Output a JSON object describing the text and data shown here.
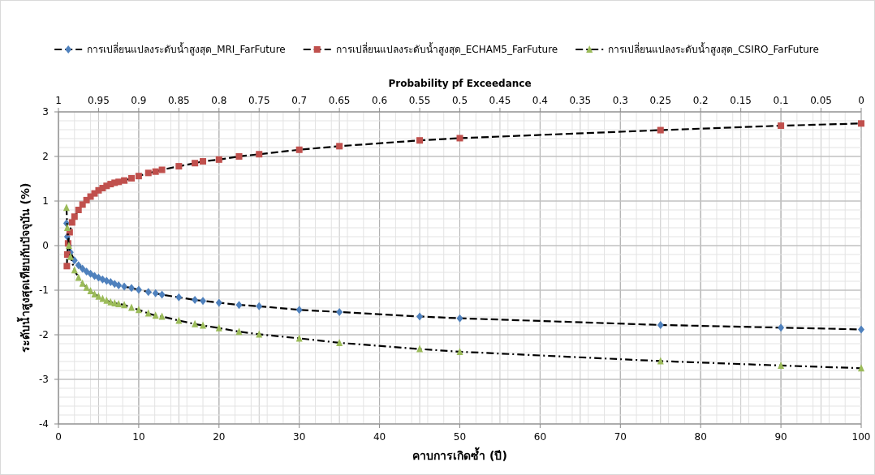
{
  "chart_data": {
    "type": "line",
    "xlabel": "คาบการเกิดซ้ำ (ปี)",
    "ylabel": "ระดับน้ำสูงสุดเทียบกับปัจจุบัน (%)",
    "x2label": "Probability pf Exceedance",
    "xlim": [
      0,
      100
    ],
    "xticks": [
      0,
      10,
      20,
      30,
      40,
      50,
      60,
      70,
      80,
      90,
      100
    ],
    "x2lim": [
      1,
      0
    ],
    "x2ticks": [
      1,
      0.95,
      0.9,
      0.85,
      0.8,
      0.75,
      0.7,
      0.65,
      0.6,
      0.55,
      0.5,
      0.45,
      0.4,
      0.35,
      0.3,
      0.25,
      0.2,
      0.15,
      0.1,
      0.05,
      0
    ],
    "ylim": [
      -4,
      3
    ],
    "yticks": [
      -4,
      -3,
      -2,
      -1,
      0,
      1,
      2,
      3
    ],
    "grid": true,
    "legend": "top",
    "series": [
      {
        "name": "การเปลี่ยนแปลงระดับน้ำสูงสุด_MRI_FarFuture",
        "color": "#4f81bd",
        "marker": "diamond",
        "line_style": "dashed",
        "x": [
          1.0,
          1.1,
          1.3,
          1.5,
          2.0,
          2.5,
          3.0,
          3.5,
          4.0,
          4.5,
          5.0,
          5.5,
          6.0,
          6.5,
          7.0,
          7.5,
          8.2,
          9.1,
          10.0,
          11.2,
          12.1,
          12.9,
          15.0,
          17.0,
          18.0,
          20.0,
          22.5,
          25.0,
          30.0,
          35.0,
          45.0,
          50.0,
          75.0,
          90.0,
          100.0
        ],
        "values": [
          0.5,
          0.2,
          0.0,
          -0.15,
          -0.33,
          -0.44,
          -0.52,
          -0.58,
          -0.63,
          -0.68,
          -0.72,
          -0.76,
          -0.79,
          -0.82,
          -0.86,
          -0.89,
          -0.92,
          -0.95,
          -0.99,
          -1.04,
          -1.07,
          -1.1,
          -1.16,
          -1.22,
          -1.24,
          -1.28,
          -1.33,
          -1.36,
          -1.44,
          -1.49,
          -1.59,
          -1.63,
          -1.78,
          -1.84,
          -1.88
        ]
      },
      {
        "name": "การเปลี่ยนแปลงระดับน้ำสูงสุด_ECHAM5_FarFuture",
        "color": "#c0504d",
        "marker": "square",
        "line_style": "dashed",
        "x": [
          1.05,
          1.1,
          1.2,
          1.4,
          1.7,
          2.0,
          2.5,
          3.0,
          3.5,
          4.0,
          4.5,
          5.0,
          5.5,
          6.0,
          6.5,
          7.0,
          7.5,
          8.2,
          9.1,
          10.0,
          11.2,
          12.1,
          12.9,
          15.0,
          17.0,
          18.0,
          20.0,
          22.5,
          25.0,
          30.0,
          35.0,
          45.0,
          50.0,
          75.0,
          90.0,
          100.0
        ],
        "values": [
          -0.46,
          -0.2,
          0.05,
          0.3,
          0.52,
          0.65,
          0.8,
          0.92,
          1.02,
          1.1,
          1.17,
          1.24,
          1.29,
          1.34,
          1.38,
          1.41,
          1.43,
          1.46,
          1.51,
          1.56,
          1.63,
          1.66,
          1.7,
          1.78,
          1.85,
          1.89,
          1.93,
          2.0,
          2.05,
          2.15,
          2.23,
          2.36,
          2.41,
          2.59,
          2.69,
          2.74
        ]
      },
      {
        "name": "การเปลี่ยนแปลงระดับน้ำสูงสุด_CSIRO_FarFuture",
        "color": "#9bbb59",
        "marker": "triangle",
        "line_style": "dashdot",
        "x": [
          1.0,
          1.1,
          1.3,
          1.5,
          2.0,
          2.5,
          3.0,
          3.5,
          4.0,
          4.5,
          5.0,
          5.5,
          6.0,
          6.5,
          7.0,
          7.5,
          8.2,
          9.1,
          10.0,
          11.2,
          12.1,
          12.9,
          15.0,
          17.0,
          18.0,
          20.0,
          22.5,
          25.0,
          30.0,
          35.0,
          45.0,
          50.0,
          75.0,
          90.0,
          100.0
        ],
        "values": [
          0.85,
          0.4,
          0.0,
          -0.25,
          -0.55,
          -0.72,
          -0.85,
          -0.94,
          -1.02,
          -1.09,
          -1.14,
          -1.19,
          -1.23,
          -1.27,
          -1.29,
          -1.31,
          -1.33,
          -1.39,
          -1.44,
          -1.52,
          -1.57,
          -1.59,
          -1.68,
          -1.76,
          -1.79,
          -1.85,
          -1.93,
          -1.99,
          -2.08,
          -2.18,
          -2.32,
          -2.38,
          -2.59,
          -2.69,
          -2.75
        ]
      }
    ]
  }
}
